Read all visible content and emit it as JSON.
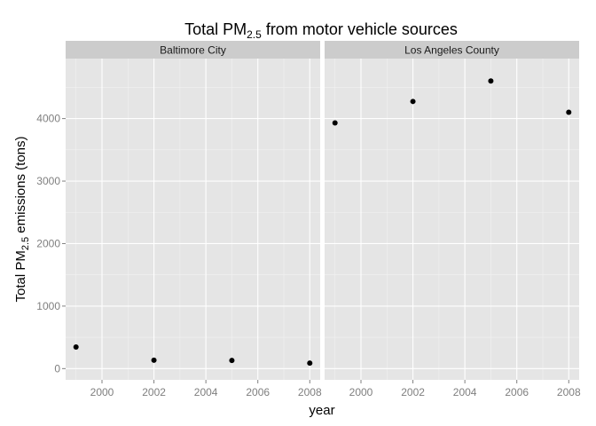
{
  "chart_data": {
    "type": "scatter",
    "title": {
      "prefix": "Total PM",
      "subscript": "2.5",
      "suffix": " from motor vehicle sources"
    },
    "xlabel": "year",
    "ylabel": {
      "prefix": "Total PM",
      "subscript": "2.5",
      "suffix": " emissions (tons)"
    },
    "xlim": [
      1998.6,
      2008.4
    ],
    "ylim": [
      -180,
      4960
    ],
    "x_ticks": [
      2000,
      2002,
      2004,
      2006,
      2008
    ],
    "x_tick_labels": [
      "2000",
      "2002",
      "2004",
      "2006",
      "2008"
    ],
    "x_minor": [
      1999,
      2001,
      2003,
      2005,
      2007
    ],
    "y_ticks": [
      0,
      1000,
      2000,
      3000,
      4000
    ],
    "y_tick_labels": [
      "0",
      "1000",
      "2000",
      "3000",
      "4000"
    ],
    "y_minor": [
      500,
      1500,
      2500,
      3500,
      4500
    ],
    "grid": true,
    "facets": [
      {
        "name": "Baltimore City",
        "x": [
          1999,
          2002,
          2005,
          2008
        ],
        "y": [
          346,
          134,
          130,
          88
        ]
      },
      {
        "name": "Los Angeles County",
        "x": [
          1999,
          2002,
          2005,
          2008
        ],
        "y": [
          3931,
          4274,
          4601,
          4101
        ]
      }
    ],
    "colors": {
      "panel_background": "#e5e5e5",
      "strip_background": "#cccccc",
      "grid_major": "#ffffff",
      "grid_minor": "#f2f2f2",
      "point": "#000000",
      "tick_label": "#7f7f7f"
    }
  }
}
